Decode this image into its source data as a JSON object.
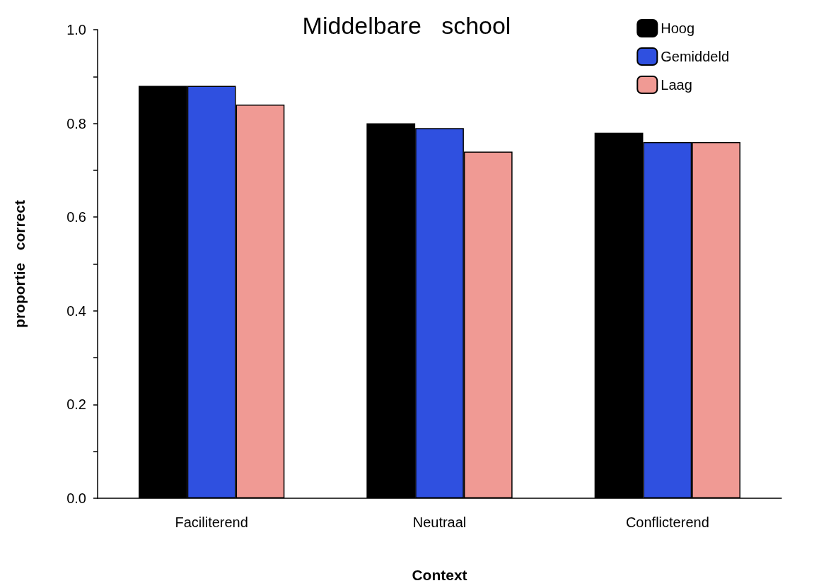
{
  "chart_data": {
    "type": "bar",
    "title": "Middelbare   school",
    "xlabel": "Context",
    "ylabel": "proportie   correct",
    "categories": [
      "Faciliterend",
      "Neutraal",
      "Conflicterend"
    ],
    "series": [
      {
        "name": "Hoog",
        "color": "#000000",
        "values": [
          0.88,
          0.8,
          0.78
        ]
      },
      {
        "name": "Gemiddeld",
        "color": "#2f50e0",
        "values": [
          0.88,
          0.79,
          0.76
        ]
      },
      {
        "name": "Laag",
        "color": "#f09a94",
        "values": [
          0.84,
          0.74,
          0.76
        ]
      }
    ],
    "ylim": [
      0,
      1
    ],
    "yticks": [
      {
        "value": 0,
        "label": "0.0"
      },
      {
        "value": 0.1,
        "label": null
      },
      0.2,
      {
        "value": 0.3,
        "label": null
      },
      0.4,
      {
        "value": 0.5,
        "label": null
      },
      0.6,
      {
        "value": 0.7,
        "label": null
      },
      0.8,
      {
        "value": 0.9,
        "label": null
      },
      {
        "value": 1,
        "label": "1.0"
      }
    ],
    "grid": false,
    "legend": "top right"
  }
}
